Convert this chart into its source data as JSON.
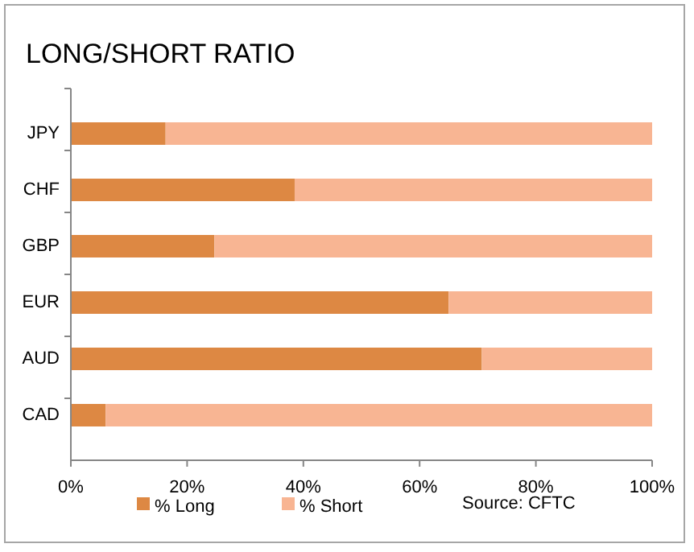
{
  "chart_data": {
    "type": "bar",
    "orientation": "horizontal",
    "stacked": true,
    "title": "LONG/SHORT RATIO",
    "categories": [
      "JPY",
      "CHF",
      "GBP",
      "EUR",
      "AUD",
      "CAD"
    ],
    "series": [
      {
        "name": "% Long",
        "color": "#dd8843",
        "values": [
          16.3,
          38.5,
          24.7,
          65,
          70.7,
          6
        ]
      },
      {
        "name": "% Short",
        "color": "#f8b593",
        "values": [
          83.7,
          61.5,
          75.3,
          35,
          29.3,
          94
        ]
      }
    ],
    "xlim": [
      0,
      100
    ],
    "xticks": [
      {
        "value": 0,
        "label": "0%"
      },
      {
        "value": 20,
        "label": "20%"
      },
      {
        "value": 40,
        "label": "40%"
      },
      {
        "value": 60,
        "label": "60%"
      },
      {
        "value": 80,
        "label": "80%"
      },
      {
        "value": 100,
        "label": "100%"
      }
    ],
    "grid": false,
    "legend": "bottom",
    "annotations": [
      "Source: CFTC"
    ]
  }
}
